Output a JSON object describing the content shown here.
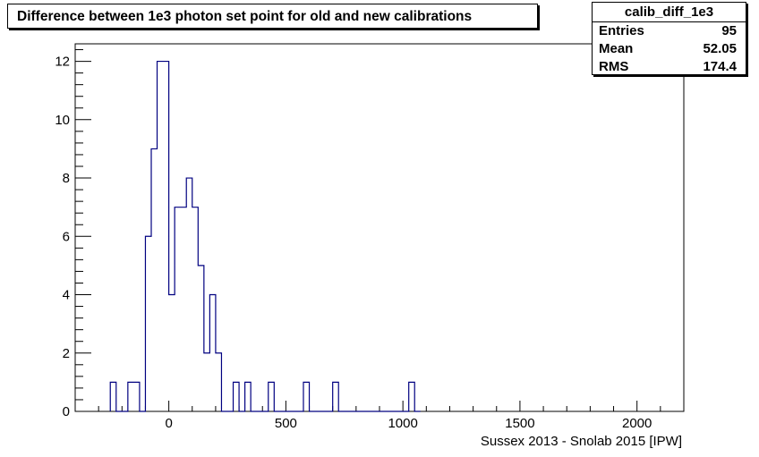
{
  "chart_data": {
    "type": "histogram",
    "title": "Difference between 1e3 photon set point for old and new calibrations",
    "xlabel": "Sussex 2013 - Snolab 2015 [IPW]",
    "ylabel": "",
    "xlim": [
      -400,
      2200
    ],
    "ylim": [
      0,
      12.6
    ],
    "xticks": [
      0,
      500,
      1000,
      1500,
      2000
    ],
    "yticks": [
      0,
      2,
      4,
      6,
      8,
      10,
      12
    ],
    "bin_edges": [
      -250,
      -225,
      -200,
      -175,
      -150,
      -125,
      -100,
      -75,
      -50,
      -25,
      0,
      25,
      50,
      75,
      100,
      125,
      150,
      175,
      200,
      225,
      250,
      275,
      300,
      325,
      350,
      375,
      400,
      425,
      450,
      475,
      500,
      525,
      550,
      575,
      600,
      625,
      650,
      675,
      700,
      725,
      750,
      775,
      800,
      825,
      850,
      875,
      900,
      925,
      950,
      975,
      1000,
      1025,
      1050,
      1075
    ],
    "counts": [
      1,
      0,
      0,
      1,
      1,
      0,
      6,
      9,
      12,
      12,
      4,
      7,
      7,
      8,
      7,
      5,
      2,
      4,
      2,
      0,
      0,
      1,
      0,
      1,
      0,
      0,
      0,
      1,
      0,
      0,
      0,
      0,
      0,
      1,
      0,
      0,
      0,
      0,
      1,
      0,
      0,
      0,
      0,
      0,
      0,
      0,
      0,
      0,
      0,
      0,
      0,
      1,
      0
    ],
    "line_color": "#000080",
    "stats": {
      "name": "calib_diff_1e3",
      "entries_label": "Entries",
      "entries": "95",
      "mean_label": "Mean",
      "mean": "52.05",
      "rms_label": "RMS",
      "rms": "174.4"
    }
  }
}
